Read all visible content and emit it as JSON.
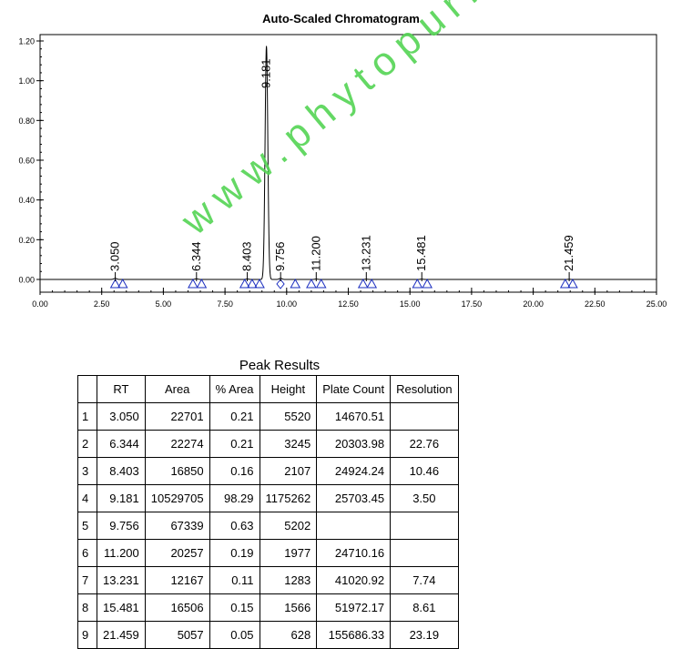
{
  "chart_data": {
    "type": "line",
    "title": "Auto-Scaled Chromatogram",
    "xlim": [
      0,
      25
    ],
    "ylim": [
      -0.05,
      1.22
    ],
    "x_ticks": [
      "0.00",
      "2.50",
      "5.00",
      "7.50",
      "10.00",
      "12.50",
      "15.00",
      "17.50",
      "20.00",
      "22.50",
      "25.00"
    ],
    "y_ticks": [
      "0.00",
      "0.20",
      "0.40",
      "0.60",
      "0.80",
      "1.00",
      "1.20"
    ],
    "x_tick_values": [
      0,
      2.5,
      5,
      7.5,
      10,
      12.5,
      15,
      17.5,
      20,
      22.5,
      25
    ],
    "y_tick_values": [
      0,
      0.2,
      0.4,
      0.6,
      0.8,
      1.0,
      1.2
    ],
    "peaks": [
      {
        "label": "3.050",
        "rt": 3.05,
        "height": 0.0055
      },
      {
        "label": "6.344",
        "rt": 6.344,
        "height": 0.0032
      },
      {
        "label": "8.403",
        "rt": 8.403,
        "height": 0.0021
      },
      {
        "label": "9.181",
        "rt": 9.181,
        "height": 1.175
      },
      {
        "label": "9.756",
        "rt": 9.756,
        "height": 0.0052
      },
      {
        "label": "11.200",
        "rt": 11.2,
        "height": 0.002
      },
      {
        "label": "13.231",
        "rt": 13.231,
        "height": 0.0013
      },
      {
        "label": "15.481",
        "rt": 15.481,
        "height": 0.0016
      },
      {
        "label": "21.459",
        "rt": 21.459,
        "height": 0.0006
      }
    ],
    "markers": [
      {
        "x": 3.05,
        "shape": "triangle"
      },
      {
        "x": 3.35,
        "shape": "triangle"
      },
      {
        "x": 6.2,
        "shape": "triangle"
      },
      {
        "x": 6.55,
        "shape": "triangle"
      },
      {
        "x": 8.3,
        "shape": "triangle"
      },
      {
        "x": 8.6,
        "shape": "triangle"
      },
      {
        "x": 8.9,
        "shape": "triangle"
      },
      {
        "x": 9.75,
        "shape": "diamond"
      },
      {
        "x": 10.35,
        "shape": "triangle"
      },
      {
        "x": 11.0,
        "shape": "triangle"
      },
      {
        "x": 11.4,
        "shape": "triangle"
      },
      {
        "x": 13.1,
        "shape": "triangle"
      },
      {
        "x": 13.45,
        "shape": "triangle"
      },
      {
        "x": 15.3,
        "shape": "triangle"
      },
      {
        "x": 15.7,
        "shape": "triangle"
      },
      {
        "x": 21.3,
        "shape": "triangle"
      },
      {
        "x": 21.6,
        "shape": "triangle"
      }
    ],
    "grid": false
  },
  "watermark": "www.phytopurify.com",
  "table": {
    "title": "Peak Results",
    "headers": [
      "",
      "RT",
      "Area",
      "% Area",
      "Height",
      "Plate Count",
      "Resolution"
    ],
    "rows": [
      [
        "1",
        "3.050",
        "22701",
        "0.21",
        "5520",
        "14670.51",
        ""
      ],
      [
        "2",
        "6.344",
        "22274",
        "0.21",
        "3245",
        "20303.98",
        "22.76"
      ],
      [
        "3",
        "8.403",
        "16850",
        "0.16",
        "2107",
        "24924.24",
        "10.46"
      ],
      [
        "4",
        "9.181",
        "10529705",
        "98.29",
        "1175262",
        "25703.45",
        "3.50"
      ],
      [
        "5",
        "9.756",
        "67339",
        "0.63",
        "5202",
        "",
        ""
      ],
      [
        "6",
        "11.200",
        "20257",
        "0.19",
        "1977",
        "24710.16",
        ""
      ],
      [
        "7",
        "13.231",
        "12167",
        "0.11",
        "1283",
        "41020.92",
        "7.74"
      ],
      [
        "8",
        "15.481",
        "16506",
        "0.15",
        "1566",
        "51972.17",
        "8.61"
      ],
      [
        "9",
        "21.459",
        "5057",
        "0.05",
        "628",
        "155686.33",
        "23.19"
      ]
    ]
  }
}
